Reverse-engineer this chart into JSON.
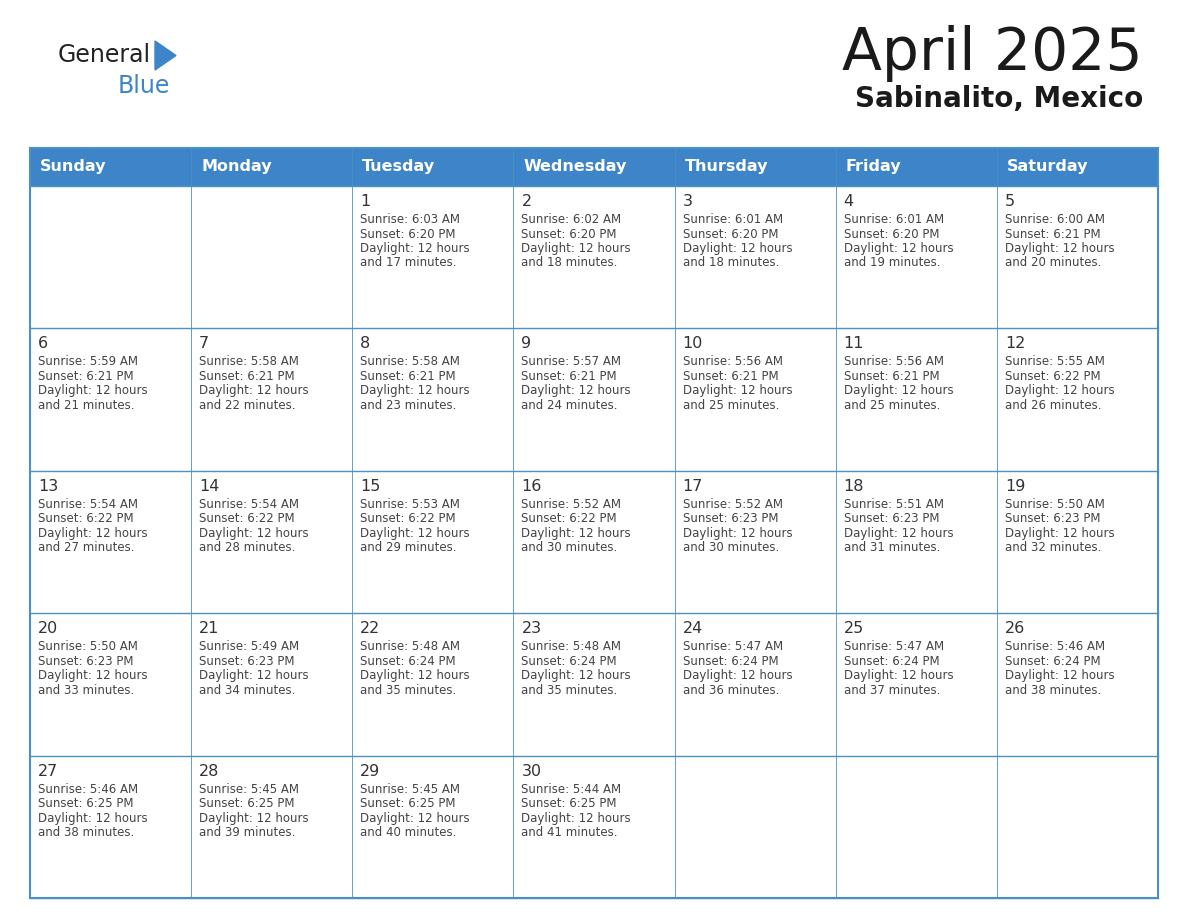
{
  "title": "April 2025",
  "subtitle": "Sabinalito, Mexico",
  "header_color": "#3d85c8",
  "header_text_color": "#ffffff",
  "day_names": [
    "Sunday",
    "Monday",
    "Tuesday",
    "Wednesday",
    "Thursday",
    "Friday",
    "Saturday"
  ],
  "background_color": "#ffffff",
  "cell_bg_color": "#ffffff",
  "grid_color": "#4a90c4",
  "text_color": "#444444",
  "day_num_color": "#333333",
  "weeks": [
    [
      {
        "day": null,
        "sunrise": null,
        "sunset": null,
        "daylight": null
      },
      {
        "day": null,
        "sunrise": null,
        "sunset": null,
        "daylight": null
      },
      {
        "day": 1,
        "sunrise": "6:03 AM",
        "sunset": "6:20 PM",
        "daylight": "12 hours\nand 17 minutes."
      },
      {
        "day": 2,
        "sunrise": "6:02 AM",
        "sunset": "6:20 PM",
        "daylight": "12 hours\nand 18 minutes."
      },
      {
        "day": 3,
        "sunrise": "6:01 AM",
        "sunset": "6:20 PM",
        "daylight": "12 hours\nand 18 minutes."
      },
      {
        "day": 4,
        "sunrise": "6:01 AM",
        "sunset": "6:20 PM",
        "daylight": "12 hours\nand 19 minutes."
      },
      {
        "day": 5,
        "sunrise": "6:00 AM",
        "sunset": "6:21 PM",
        "daylight": "12 hours\nand 20 minutes."
      }
    ],
    [
      {
        "day": 6,
        "sunrise": "5:59 AM",
        "sunset": "6:21 PM",
        "daylight": "12 hours\nand 21 minutes."
      },
      {
        "day": 7,
        "sunrise": "5:58 AM",
        "sunset": "6:21 PM",
        "daylight": "12 hours\nand 22 minutes."
      },
      {
        "day": 8,
        "sunrise": "5:58 AM",
        "sunset": "6:21 PM",
        "daylight": "12 hours\nand 23 minutes."
      },
      {
        "day": 9,
        "sunrise": "5:57 AM",
        "sunset": "6:21 PM",
        "daylight": "12 hours\nand 24 minutes."
      },
      {
        "day": 10,
        "sunrise": "5:56 AM",
        "sunset": "6:21 PM",
        "daylight": "12 hours\nand 25 minutes."
      },
      {
        "day": 11,
        "sunrise": "5:56 AM",
        "sunset": "6:21 PM",
        "daylight": "12 hours\nand 25 minutes."
      },
      {
        "day": 12,
        "sunrise": "5:55 AM",
        "sunset": "6:22 PM",
        "daylight": "12 hours\nand 26 minutes."
      }
    ],
    [
      {
        "day": 13,
        "sunrise": "5:54 AM",
        "sunset": "6:22 PM",
        "daylight": "12 hours\nand 27 minutes."
      },
      {
        "day": 14,
        "sunrise": "5:54 AM",
        "sunset": "6:22 PM",
        "daylight": "12 hours\nand 28 minutes."
      },
      {
        "day": 15,
        "sunrise": "5:53 AM",
        "sunset": "6:22 PM",
        "daylight": "12 hours\nand 29 minutes."
      },
      {
        "day": 16,
        "sunrise": "5:52 AM",
        "sunset": "6:22 PM",
        "daylight": "12 hours\nand 30 minutes."
      },
      {
        "day": 17,
        "sunrise": "5:52 AM",
        "sunset": "6:23 PM",
        "daylight": "12 hours\nand 30 minutes."
      },
      {
        "day": 18,
        "sunrise": "5:51 AM",
        "sunset": "6:23 PM",
        "daylight": "12 hours\nand 31 minutes."
      },
      {
        "day": 19,
        "sunrise": "5:50 AM",
        "sunset": "6:23 PM",
        "daylight": "12 hours\nand 32 minutes."
      }
    ],
    [
      {
        "day": 20,
        "sunrise": "5:50 AM",
        "sunset": "6:23 PM",
        "daylight": "12 hours\nand 33 minutes."
      },
      {
        "day": 21,
        "sunrise": "5:49 AM",
        "sunset": "6:23 PM",
        "daylight": "12 hours\nand 34 minutes."
      },
      {
        "day": 22,
        "sunrise": "5:48 AM",
        "sunset": "6:24 PM",
        "daylight": "12 hours\nand 35 minutes."
      },
      {
        "day": 23,
        "sunrise": "5:48 AM",
        "sunset": "6:24 PM",
        "daylight": "12 hours\nand 35 minutes."
      },
      {
        "day": 24,
        "sunrise": "5:47 AM",
        "sunset": "6:24 PM",
        "daylight": "12 hours\nand 36 minutes."
      },
      {
        "day": 25,
        "sunrise": "5:47 AM",
        "sunset": "6:24 PM",
        "daylight": "12 hours\nand 37 minutes."
      },
      {
        "day": 26,
        "sunrise": "5:46 AM",
        "sunset": "6:24 PM",
        "daylight": "12 hours\nand 38 minutes."
      }
    ],
    [
      {
        "day": 27,
        "sunrise": "5:46 AM",
        "sunset": "6:25 PM",
        "daylight": "12 hours\nand 38 minutes."
      },
      {
        "day": 28,
        "sunrise": "5:45 AM",
        "sunset": "6:25 PM",
        "daylight": "12 hours\nand 39 minutes."
      },
      {
        "day": 29,
        "sunrise": "5:45 AM",
        "sunset": "6:25 PM",
        "daylight": "12 hours\nand 40 minutes."
      },
      {
        "day": 30,
        "sunrise": "5:44 AM",
        "sunset": "6:25 PM",
        "daylight": "12 hours\nand 41 minutes."
      },
      {
        "day": null,
        "sunrise": null,
        "sunset": null,
        "daylight": null
      },
      {
        "day": null,
        "sunrise": null,
        "sunset": null,
        "daylight": null
      },
      {
        "day": null,
        "sunrise": null,
        "sunset": null,
        "daylight": null
      }
    ]
  ],
  "logo_general_color": "#222222",
  "logo_blue_color": "#3d85c8",
  "logo_triangle_color": "#3d85c8"
}
